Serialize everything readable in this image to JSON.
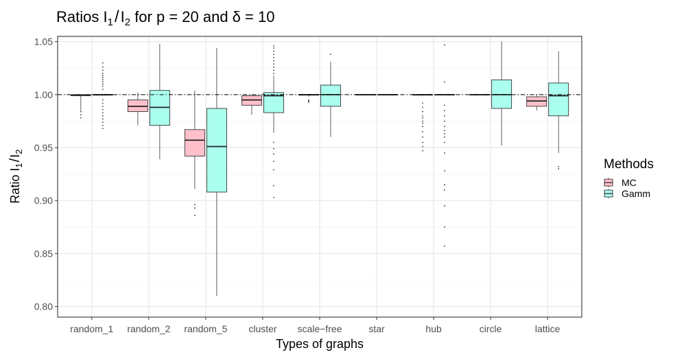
{
  "chart_data": {
    "type": "boxplot",
    "title": {
      "prefix": "Ratios I",
      "sub1": "1",
      "slash": "/",
      "mid": "I",
      "sub2": "2",
      "suffix": " for p = 20 and δ = 10"
    },
    "xlabel": "Types of graphs",
    "ylabel": {
      "prefix": "Ratio I",
      "sub1": "1",
      "slash": "/",
      "mid": "I",
      "sub2": "2"
    },
    "ylim": [
      0.79,
      1.055
    ],
    "yticks": [
      0.8,
      0.85,
      0.9,
      0.95,
      1.0,
      1.05
    ],
    "ytick_labels": [
      "0.80",
      "0.85",
      "0.90",
      "0.95",
      "1.00",
      "1.05"
    ],
    "reference_line": 1.0,
    "categories": [
      "random_1",
      "random_2",
      "random_5",
      "cluster",
      "scale−free",
      "star",
      "hub",
      "circle",
      "lattice"
    ],
    "legend": {
      "title": "Methods",
      "entries": [
        "MC",
        "Gamm"
      ]
    },
    "colors": {
      "MC": "#ffc0cb",
      "Gamm": "#aaffee",
      "stroke": "#333333",
      "grid_major": "#ebebeb",
      "grid_minor": "#f5f5f5",
      "panel_border": "#333333"
    },
    "series": [
      {
        "name": "MC",
        "boxes": [
          {
            "whisker_low": 0.985,
            "q1": 0.999,
            "median": 0.9995,
            "q3": 1.0,
            "whisker_high": 1.0,
            "outliers": [
              0.978,
              0.981,
              0.984
            ]
          },
          {
            "whisker_low": 0.971,
            "q1": 0.984,
            "median": 0.989,
            "q3": 0.995,
            "whisker_high": 1.002,
            "outliers": []
          },
          {
            "whisker_low": 0.911,
            "q1": 0.942,
            "median": 0.957,
            "q3": 0.967,
            "whisker_high": 1.004,
            "outliers": [
              0.886,
              0.893,
              0.896
            ]
          },
          {
            "whisker_low": 0.981,
            "q1": 0.99,
            "median": 0.995,
            "q3": 0.999,
            "whisker_high": 1.0,
            "outliers": []
          },
          {
            "whisker_low": 0.998,
            "q1": 0.9995,
            "median": 1.0,
            "q3": 1.0,
            "whisker_high": 1.0,
            "outliers": [
              0.993,
              0.994,
              0.995
            ]
          },
          {
            "whisker_low": 1.0,
            "q1": 1.0,
            "median": 1.0,
            "q3": 1.0,
            "whisker_high": 1.0,
            "outliers": []
          },
          {
            "whisker_low": 0.999,
            "q1": 0.9995,
            "median": 1.0,
            "q3": 1.0,
            "whisker_high": 1.0,
            "outliers": [
              0.947,
              0.951,
              0.955,
              0.96,
              0.965,
              0.97,
              0.973,
              0.975,
              0.978,
              0.98,
              0.984,
              0.988,
              0.992
            ]
          },
          {
            "whisker_low": 1.0,
            "q1": 1.0,
            "median": 1.0,
            "q3": 1.0,
            "whisker_high": 1.0,
            "outliers": []
          },
          {
            "whisker_low": 0.985,
            "q1": 0.989,
            "median": 0.994,
            "q3": 0.998,
            "whisker_high": 1.0,
            "outliers": []
          }
        ]
      },
      {
        "name": "Gamm",
        "boxes": [
          {
            "whisker_low": 0.999,
            "q1": 0.9995,
            "median": 1.0,
            "q3": 1.0,
            "whisker_high": 1.0,
            "outliers": [
              0.968,
              0.971,
              0.974,
              0.977,
              0.98,
              0.983,
              0.986,
              0.989,
              0.992,
              0.995,
              1.005,
              1.008,
              1.01,
              1.012,
              1.014,
              1.016,
              1.018,
              1.02,
              1.023,
              1.026,
              1.03
            ]
          },
          {
            "whisker_low": 0.939,
            "q1": 0.971,
            "median": 0.988,
            "q3": 1.004,
            "whisker_high": 1.048,
            "outliers": []
          },
          {
            "whisker_low": 0.81,
            "q1": 0.908,
            "median": 0.951,
            "q3": 0.987,
            "whisker_high": 1.044,
            "outliers": []
          },
          {
            "whisker_low": 0.964,
            "q1": 0.983,
            "median": 0.999,
            "q3": 1.002,
            "whisker_high": 1.018,
            "outliers": [
              0.903,
              0.914,
              0.929,
              0.937,
              0.944,
              0.949,
              0.955,
              1.02,
              1.023,
              1.026,
              1.029,
              1.032,
              1.035,
              1.038,
              1.041,
              1.044,
              1.046
            ]
          },
          {
            "whisker_low": 0.96,
            "q1": 0.989,
            "median": 1.0,
            "q3": 1.009,
            "whisker_high": 1.031,
            "outliers": [
              1.038
            ]
          },
          {
            "whisker_low": 1.0,
            "q1": 1.0,
            "median": 1.0,
            "q3": 1.0,
            "whisker_high": 1.0,
            "outliers": []
          },
          {
            "whisker_low": 1.0,
            "q1": 1.0,
            "median": 1.0,
            "q3": 1.0,
            "whisker_high": 1.0,
            "outliers": [
              0.857,
              0.875,
              0.895,
              0.91,
              0.915,
              0.928,
              0.945,
              0.955,
              0.96,
              0.963,
              0.966,
              0.97,
              0.975,
              0.98,
              0.985,
              0.99,
              1.012,
              1.047
            ]
          },
          {
            "whisker_low": 0.952,
            "q1": 0.987,
            "median": 1.0,
            "q3": 1.014,
            "whisker_high": 1.05,
            "outliers": []
          },
          {
            "whisker_low": 0.945,
            "q1": 0.98,
            "median": 0.999,
            "q3": 1.011,
            "whisker_high": 1.041,
            "outliers": [
              0.93,
              0.932
            ]
          }
        ]
      }
    ]
  }
}
